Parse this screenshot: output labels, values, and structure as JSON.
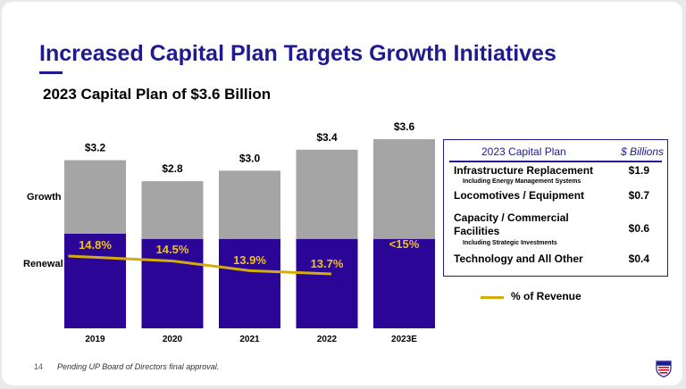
{
  "title": "Increased Capital Plan Targets Growth Initiatives",
  "subtitle": "2023 Capital Plan of $3.6 Billion",
  "side_labels": {
    "growth": "Growth",
    "renewal": "Renewal"
  },
  "colors": {
    "growth": "#a5a5a5",
    "renewal": "#2b0596",
    "revenue_line": "#d4ad0c",
    "brand": "#1f1a8f",
    "growth_pct_label": "#f1c21b",
    "renewal_pct_label": "#f1c21b"
  },
  "chart_data": {
    "type": "bar",
    "stacked": true,
    "title": "2023 Capital Plan of $3.6 Billion",
    "categories": [
      "2019",
      "2020",
      "2021",
      "2022",
      "2023E"
    ],
    "totals_labels": [
      "$3.2",
      "$2.8",
      "$3.0",
      "$3.4",
      "$3.6"
    ],
    "series": [
      {
        "name": "Renewal",
        "values": [
          1.8,
          1.7,
          1.7,
          1.7,
          1.7
        ]
      },
      {
        "name": "Growth",
        "values": [
          1.4,
          1.1,
          1.3,
          1.7,
          1.9
        ]
      }
    ],
    "line_series": {
      "name": "% of Revenue",
      "values": [
        14.8,
        14.5,
        13.9,
        13.7
      ],
      "categories": [
        "2019",
        "2020",
        "2021",
        "2022"
      ]
    },
    "pct_labels": [
      "14.8%",
      "14.5%",
      "13.9%",
      "13.7%",
      "<15%"
    ],
    "ylim": [
      0,
      3.6
    ],
    "line_ylim": [
      10,
      18
    ],
    "legend": "bottom-right"
  },
  "plan_table": {
    "header_left": "2023 Capital Plan",
    "header_right": "$ Billions",
    "rows": [
      {
        "label": "Infrastructure Replacement",
        "note": "Including Energy Management Systems",
        "value": "$1.9"
      },
      {
        "label": "Locomotives / Equipment",
        "note": "",
        "value": "$0.7"
      },
      {
        "label": "Capacity / Commercial Facilities",
        "note": "Including Strategic Investments",
        "value": "$0.6"
      },
      {
        "label": "Technology and All Other",
        "note": "",
        "value": "$0.4"
      }
    ]
  },
  "legend_label": "% of Revenue",
  "page_number": "14",
  "footnote": "Pending UP Board of Directors final approval.",
  "logo": {
    "icon": "union-pacific-shield-icon"
  }
}
